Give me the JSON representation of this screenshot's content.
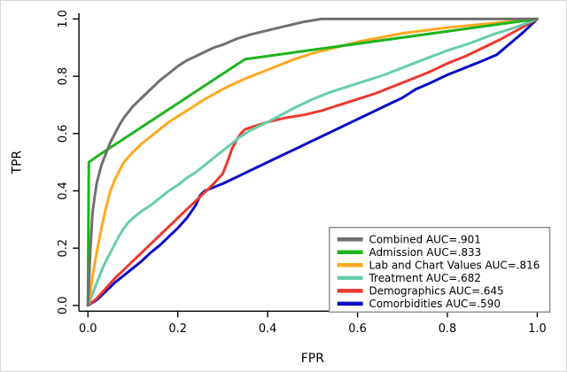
{
  "figure": {
    "background": "#ffffff",
    "border_color": "#d6d6d6",
    "axis_color": "#000000",
    "legend_border_color": "#8f8f8f"
  },
  "chart_data": {
    "type": "line",
    "chart_kind": "roc-curves",
    "title": "",
    "xlabel": "FPR",
    "ylabel": "TPR",
    "xlim": [
      0,
      1
    ],
    "ylim": [
      0,
      1
    ],
    "xticks": [
      0.0,
      0.2,
      0.4,
      0.6,
      0.8,
      1.0
    ],
    "yticks": [
      0.0,
      0.2,
      0.4,
      0.6,
      0.8,
      1.0
    ],
    "grid": false,
    "legend_position": "bottom-right",
    "series": [
      {
        "name": "Combined AUC=.901",
        "auc": 0.901,
        "color": "#6f6f6f",
        "points": [
          [
            0,
            0
          ],
          [
            0.005,
            0.18
          ],
          [
            0.01,
            0.32
          ],
          [
            0.015,
            0.38
          ],
          [
            0.02,
            0.43
          ],
          [
            0.03,
            0.49
          ],
          [
            0.04,
            0.53
          ],
          [
            0.05,
            0.57
          ],
          [
            0.06,
            0.6
          ],
          [
            0.07,
            0.63
          ],
          [
            0.08,
            0.655
          ],
          [
            0.09,
            0.675
          ],
          [
            0.1,
            0.695
          ],
          [
            0.12,
            0.725
          ],
          [
            0.14,
            0.755
          ],
          [
            0.16,
            0.785
          ],
          [
            0.18,
            0.81
          ],
          [
            0.2,
            0.835
          ],
          [
            0.22,
            0.855
          ],
          [
            0.24,
            0.87
          ],
          [
            0.26,
            0.885
          ],
          [
            0.28,
            0.9
          ],
          [
            0.3,
            0.91
          ],
          [
            0.33,
            0.93
          ],
          [
            0.36,
            0.945
          ],
          [
            0.4,
            0.96
          ],
          [
            0.44,
            0.975
          ],
          [
            0.48,
            0.99
          ],
          [
            0.52,
            1.0
          ],
          [
            1.0,
            1.0
          ]
        ]
      },
      {
        "name": "Admission AUC=.833",
        "auc": 0.833,
        "color": "#1eb41e",
        "points": [
          [
            0,
            0
          ],
          [
            0.002,
            0.5
          ],
          [
            0.02,
            0.52
          ],
          [
            0.35,
            0.86
          ],
          [
            0.36,
            0.862
          ],
          [
            1.0,
            1.0
          ]
        ]
      },
      {
        "name": "Lab and Chart Values AUC=.816",
        "auc": 0.816,
        "color": "#ffa81e",
        "points": [
          [
            0,
            0
          ],
          [
            0.005,
            0.04
          ],
          [
            0.01,
            0.1
          ],
          [
            0.02,
            0.19
          ],
          [
            0.03,
            0.27
          ],
          [
            0.04,
            0.34
          ],
          [
            0.05,
            0.4
          ],
          [
            0.06,
            0.44
          ],
          [
            0.07,
            0.47
          ],
          [
            0.08,
            0.5
          ],
          [
            0.1,
            0.535
          ],
          [
            0.12,
            0.565
          ],
          [
            0.14,
            0.59
          ],
          [
            0.16,
            0.615
          ],
          [
            0.18,
            0.64
          ],
          [
            0.2,
            0.66
          ],
          [
            0.23,
            0.69
          ],
          [
            0.26,
            0.72
          ],
          [
            0.3,
            0.755
          ],
          [
            0.34,
            0.785
          ],
          [
            0.38,
            0.81
          ],
          [
            0.42,
            0.835
          ],
          [
            0.46,
            0.86
          ],
          [
            0.5,
            0.88
          ],
          [
            0.55,
            0.9
          ],
          [
            0.6,
            0.92
          ],
          [
            0.7,
            0.95
          ],
          [
            0.8,
            0.97
          ],
          [
            0.9,
            0.985
          ],
          [
            1.0,
            1.0
          ]
        ]
      },
      {
        "name": "Treatment AUC=.682",
        "auc": 0.682,
        "color": "#66cdaa",
        "points": [
          [
            0,
            0
          ],
          [
            0.01,
            0.04
          ],
          [
            0.02,
            0.08
          ],
          [
            0.03,
            0.12
          ],
          [
            0.04,
            0.155
          ],
          [
            0.05,
            0.185
          ],
          [
            0.06,
            0.215
          ],
          [
            0.07,
            0.245
          ],
          [
            0.08,
            0.27
          ],
          [
            0.09,
            0.29
          ],
          [
            0.1,
            0.305
          ],
          [
            0.12,
            0.33
          ],
          [
            0.14,
            0.35
          ],
          [
            0.16,
            0.375
          ],
          [
            0.18,
            0.4
          ],
          [
            0.2,
            0.42
          ],
          [
            0.22,
            0.445
          ],
          [
            0.24,
            0.465
          ],
          [
            0.26,
            0.49
          ],
          [
            0.28,
            0.515
          ],
          [
            0.3,
            0.54
          ],
          [
            0.32,
            0.565
          ],
          [
            0.34,
            0.59
          ],
          [
            0.36,
            0.61
          ],
          [
            0.38,
            0.625
          ],
          [
            0.4,
            0.64
          ],
          [
            0.43,
            0.665
          ],
          [
            0.46,
            0.69
          ],
          [
            0.5,
            0.72
          ],
          [
            0.54,
            0.745
          ],
          [
            0.58,
            0.765
          ],
          [
            0.62,
            0.785
          ],
          [
            0.66,
            0.805
          ],
          [
            0.7,
            0.83
          ],
          [
            0.75,
            0.86
          ],
          [
            0.8,
            0.89
          ],
          [
            0.85,
            0.915
          ],
          [
            0.9,
            0.945
          ],
          [
            0.95,
            0.97
          ],
          [
            1.0,
            1.0
          ]
        ]
      },
      {
        "name": "Demographics AUC=.645",
        "auc": 0.645,
        "color": "#ef382f",
        "points": [
          [
            0,
            0
          ],
          [
            0.02,
            0.025
          ],
          [
            0.04,
            0.06
          ],
          [
            0.06,
            0.095
          ],
          [
            0.08,
            0.125
          ],
          [
            0.1,
            0.155
          ],
          [
            0.12,
            0.185
          ],
          [
            0.14,
            0.215
          ],
          [
            0.16,
            0.245
          ],
          [
            0.18,
            0.275
          ],
          [
            0.2,
            0.305
          ],
          [
            0.22,
            0.335
          ],
          [
            0.24,
            0.365
          ],
          [
            0.26,
            0.395
          ],
          [
            0.28,
            0.425
          ],
          [
            0.3,
            0.46
          ],
          [
            0.31,
            0.5
          ],
          [
            0.32,
            0.545
          ],
          [
            0.33,
            0.575
          ],
          [
            0.34,
            0.6
          ],
          [
            0.35,
            0.615
          ],
          [
            0.37,
            0.625
          ],
          [
            0.4,
            0.64
          ],
          [
            0.44,
            0.655
          ],
          [
            0.48,
            0.665
          ],
          [
            0.52,
            0.68
          ],
          [
            0.56,
            0.7
          ],
          [
            0.6,
            0.72
          ],
          [
            0.64,
            0.74
          ],
          [
            0.68,
            0.765
          ],
          [
            0.72,
            0.79
          ],
          [
            0.76,
            0.815
          ],
          [
            0.8,
            0.845
          ],
          [
            0.84,
            0.87
          ],
          [
            0.88,
            0.9
          ],
          [
            0.92,
            0.93
          ],
          [
            0.96,
            0.965
          ],
          [
            1.0,
            1.0
          ]
        ]
      },
      {
        "name": "Comorbidities AUC=.590",
        "auc": 0.59,
        "color": "#0b0bc8",
        "points": [
          [
            0,
            0
          ],
          [
            0.02,
            0.02
          ],
          [
            0.04,
            0.05
          ],
          [
            0.06,
            0.08
          ],
          [
            0.08,
            0.105
          ],
          [
            0.1,
            0.13
          ],
          [
            0.12,
            0.155
          ],
          [
            0.14,
            0.185
          ],
          [
            0.16,
            0.21
          ],
          [
            0.18,
            0.24
          ],
          [
            0.2,
            0.27
          ],
          [
            0.22,
            0.305
          ],
          [
            0.24,
            0.35
          ],
          [
            0.25,
            0.385
          ],
          [
            0.26,
            0.4
          ],
          [
            0.3,
            0.425
          ],
          [
            0.34,
            0.455
          ],
          [
            0.38,
            0.485
          ],
          [
            0.42,
            0.515
          ],
          [
            0.46,
            0.545
          ],
          [
            0.5,
            0.575
          ],
          [
            0.54,
            0.605
          ],
          [
            0.58,
            0.635
          ],
          [
            0.62,
            0.665
          ],
          [
            0.66,
            0.695
          ],
          [
            0.7,
            0.725
          ],
          [
            0.73,
            0.755
          ],
          [
            0.76,
            0.775
          ],
          [
            0.8,
            0.805
          ],
          [
            0.84,
            0.83
          ],
          [
            0.88,
            0.855
          ],
          [
            0.91,
            0.875
          ],
          [
            0.94,
            0.915
          ],
          [
            0.97,
            0.955
          ],
          [
            1.0,
            1.0
          ]
        ]
      }
    ]
  }
}
